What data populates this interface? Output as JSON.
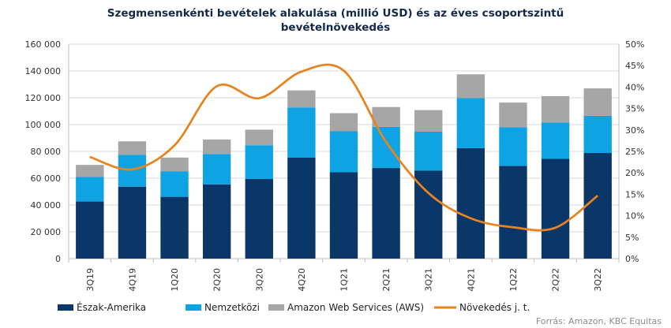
{
  "chart_data": {
    "type": "bar",
    "title_line1": "Szegmensenkénti bevételek alakulása (millió USD) és az éves csoportszintű",
    "title_line2": "bevételnövekedés",
    "categories": [
      "3Q19",
      "4Q19",
      "1Q20",
      "2Q20",
      "3Q20",
      "4Q20",
      "1Q21",
      "2Q21",
      "3Q21",
      "4Q21",
      "1Q22",
      "2Q22",
      "3Q22"
    ],
    "stacked": true,
    "series": [
      {
        "name": "Észak-Amerika",
        "color": "#0b3668",
        "values": [
          42600,
          53700,
          46100,
          55400,
          59400,
          75300,
          64400,
          67600,
          65600,
          82400,
          69200,
          74400,
          78800
        ]
      },
      {
        "name": "Nemzetközi",
        "color": "#10a3e3",
        "values": [
          18300,
          23800,
          19100,
          22700,
          25200,
          37500,
          30600,
          30700,
          29100,
          37300,
          28800,
          27100,
          27700
        ]
      },
      {
        "name": "Amazon Web Services (AWS)",
        "color": "#a6a6a6",
        "values": [
          9000,
          10000,
          10200,
          10800,
          11600,
          12700,
          13500,
          14800,
          16100,
          17800,
          18400,
          19700,
          20500
        ]
      }
    ],
    "line_series": {
      "name": "Növekedés j. t.",
      "color": "#e8841f",
      "axis": "right",
      "values": [
        23.7,
        20.8,
        26.4,
        40.2,
        37.4,
        43.6,
        43.8,
        27.2,
        15.3,
        9.4,
        7.3,
        7.2,
        14.7
      ]
    },
    "left_axis": {
      "min": 0,
      "max": 160000,
      "step": 20000,
      "tick_labels": [
        "0",
        "20 000",
        "40 000",
        "60 000",
        "80 000",
        "100 000",
        "120 000",
        "140 000",
        "160 000"
      ]
    },
    "right_axis": {
      "min": 0,
      "max": 50,
      "step": 5,
      "tick_labels": [
        "0%",
        "5%",
        "10%",
        "15%",
        "20%",
        "25%",
        "30%",
        "35%",
        "40%",
        "45%",
        "50%"
      ]
    },
    "grid": true,
    "legend_position": "bottom"
  },
  "source_text": "Forrás: Amazon, KBC Equitas"
}
